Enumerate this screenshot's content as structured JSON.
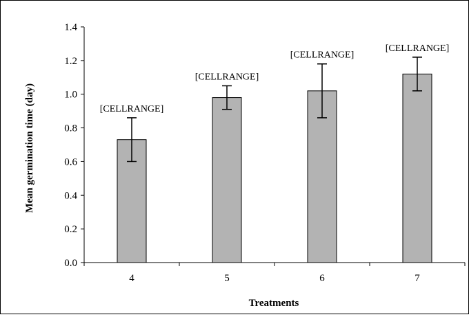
{
  "chart_data": {
    "type": "bar",
    "title": "",
    "xlabel": "Treatments",
    "ylabel": "Mean germination time (day)",
    "categories": [
      "4",
      "5",
      "6",
      "7"
    ],
    "values": [
      0.73,
      0.98,
      1.02,
      1.12
    ],
    "error_low": [
      0.6,
      0.91,
      0.86,
      1.02
    ],
    "error_high": [
      0.86,
      1.05,
      1.18,
      1.22
    ],
    "data_labels": [
      "[CELLRANGE]",
      "[CELLRANGE]",
      "[CELLRANGE]",
      "[CELLRANGE]"
    ],
    "ylim": [
      0,
      1.4
    ],
    "yticks": [
      "0.0",
      "0.2",
      "0.4",
      "0.6",
      "0.8",
      "1.0",
      "1.2",
      "1.4"
    ],
    "grid": false,
    "legend": "none",
    "colors": {
      "bar_fill": "#b3b3b3",
      "bar_stroke": "#000000",
      "axis": "#000000"
    }
  }
}
